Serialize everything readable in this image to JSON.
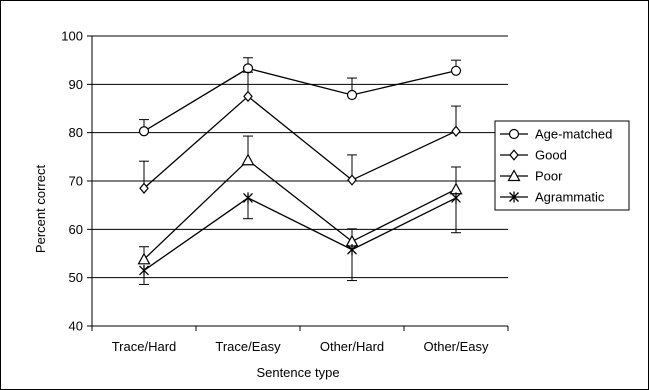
{
  "chart_data": {
    "type": "line",
    "title": "",
    "xlabel": "Sentence type",
    "ylabel": "Percent correct",
    "categories": [
      "Trace/Hard",
      "Trace/Easy",
      "Other/Hard",
      "Other/Easy"
    ],
    "ylim": [
      40,
      100
    ],
    "yticks": [
      "40",
      "50",
      "60",
      "70",
      "80",
      "90",
      "100"
    ],
    "grid": true,
    "legend_position": "right",
    "series": [
      {
        "name": "Age-matched",
        "marker": "circle",
        "values": [
          80.3,
          93.3,
          87.8,
          92.8
        ],
        "error": [
          2.4,
          2.2,
          3.5,
          2.2
        ],
        "error_dir": "up"
      },
      {
        "name": "Good",
        "marker": "diamond",
        "values": [
          68.5,
          87.5,
          70.2,
          80.3
        ],
        "error": [
          5.6,
          5.0,
          5.2,
          5.2
        ],
        "error_dir": "up"
      },
      {
        "name": "Poor",
        "marker": "triangle",
        "values": [
          53.8,
          74.3,
          57.5,
          68.3
        ],
        "error": [
          2.6,
          5.0,
          2.6,
          4.6
        ],
        "error_dir": "up"
      },
      {
        "name": "Agrammatic",
        "marker": "star",
        "values": [
          51.5,
          66.5,
          55.8,
          66.5
        ],
        "error": [
          2.9,
          4.3,
          6.4,
          7.2
        ],
        "error_dir": "down"
      }
    ]
  }
}
